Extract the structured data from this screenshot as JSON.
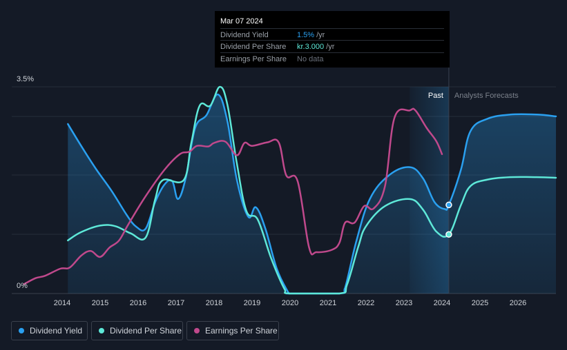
{
  "tooltip": {
    "date": "Mar 07 2024",
    "rows": [
      {
        "label": "Dividend Yield",
        "value": "1.5%",
        "unit": "/yr",
        "color": "#2aa0f0"
      },
      {
        "label": "Dividend Per Share",
        "value": "kr.3.000",
        "unit": "/yr",
        "color": "#5ee8d8"
      },
      {
        "label": "Earnings Per Share",
        "value": "No data",
        "unit": "",
        "color": "#6b717c"
      }
    ]
  },
  "regions": {
    "past_label": "Past",
    "forecast_label": "Analysts Forecasts"
  },
  "legend": [
    {
      "label": "Dividend Yield",
      "color": "#2aa0f0"
    },
    {
      "label": "Dividend Per Share",
      "color": "#5ee8d8"
    },
    {
      "label": "Earnings Per Share",
      "color": "#c0498c"
    }
  ],
  "chart_data": {
    "type": "line",
    "x_unit": "year",
    "xlim": [
      2013.0,
      2027.0
    ],
    "ylim": [
      0,
      3.5
    ],
    "y_tick_labels": [
      {
        "value": 3.5,
        "label": "3.5%"
      },
      {
        "value": 0,
        "label": "0%"
      }
    ],
    "x_ticks": [
      2014,
      2015,
      2016,
      2017,
      2018,
      2019,
      2020,
      2021,
      2022,
      2023,
      2024,
      2025,
      2026
    ],
    "past_region": [
      2023.15,
      2024.18
    ],
    "grid": "horizontal",
    "series": [
      {
        "name": "Dividend Yield",
        "color": "#2aa0f0",
        "fill": true,
        "points": [
          [
            2014.15,
            2.87
          ],
          [
            2014.5,
            2.5
          ],
          [
            2014.9,
            2.1
          ],
          [
            2015.3,
            1.74
          ],
          [
            2015.7,
            1.33
          ],
          [
            2015.95,
            1.13
          ],
          [
            2016.2,
            1.1
          ],
          [
            2016.45,
            1.55
          ],
          [
            2016.7,
            1.85
          ],
          [
            2016.9,
            1.9
          ],
          [
            2017.05,
            1.6
          ],
          [
            2017.25,
            1.95
          ],
          [
            2017.5,
            2.8
          ],
          [
            2017.8,
            3.02
          ],
          [
            2018.1,
            3.37
          ],
          [
            2018.35,
            2.92
          ],
          [
            2018.6,
            1.92
          ],
          [
            2018.9,
            1.3
          ],
          [
            2019.1,
            1.46
          ],
          [
            2019.35,
            1.1
          ],
          [
            2019.65,
            0.42
          ],
          [
            2019.95,
            0.02
          ],
          [
            2020.0,
            0.0
          ],
          [
            2021.3,
            0.0
          ],
          [
            2021.45,
            0.1
          ],
          [
            2021.75,
            0.9
          ],
          [
            2022.1,
            1.6
          ],
          [
            2022.6,
            2.0
          ],
          [
            2023.15,
            2.14
          ],
          [
            2023.5,
            1.95
          ],
          [
            2023.8,
            1.55
          ],
          [
            2024.07,
            1.43
          ],
          [
            2024.18,
            1.5
          ],
          [
            2024.5,
            2.1
          ],
          [
            2024.75,
            2.75
          ],
          [
            2025.2,
            2.96
          ],
          [
            2025.8,
            3.03
          ],
          [
            2026.5,
            3.03
          ],
          [
            2027.0,
            3.0
          ]
        ]
      },
      {
        "name": "Dividend Per Share",
        "color": "#5ee8d8",
        "fill": false,
        "points": [
          [
            2014.15,
            0.9
          ],
          [
            2014.5,
            1.04
          ],
          [
            2015.0,
            1.15
          ],
          [
            2015.4,
            1.14
          ],
          [
            2015.8,
            1.02
          ],
          [
            2016.2,
            0.95
          ],
          [
            2016.45,
            1.6
          ],
          [
            2016.65,
            1.92
          ],
          [
            2017.2,
            1.92
          ],
          [
            2017.4,
            2.55
          ],
          [
            2017.62,
            3.18
          ],
          [
            2017.9,
            3.18
          ],
          [
            2018.15,
            3.5
          ],
          [
            2018.35,
            3.2
          ],
          [
            2018.6,
            2.2
          ],
          [
            2018.85,
            1.4
          ],
          [
            2019.15,
            1.25
          ],
          [
            2019.5,
            0.6
          ],
          [
            2019.85,
            0.08
          ],
          [
            2020.0,
            0.0
          ],
          [
            2021.3,
            0.0
          ],
          [
            2021.5,
            0.15
          ],
          [
            2021.8,
            0.8
          ],
          [
            2022.0,
            1.14
          ],
          [
            2022.5,
            1.48
          ],
          [
            2023.15,
            1.6
          ],
          [
            2023.5,
            1.42
          ],
          [
            2023.85,
            1.05
          ],
          [
            2024.18,
            1.0
          ],
          [
            2024.5,
            1.5
          ],
          [
            2024.75,
            1.82
          ],
          [
            2025.2,
            1.93
          ],
          [
            2025.8,
            1.97
          ],
          [
            2026.5,
            1.97
          ],
          [
            2027.0,
            1.96
          ]
        ]
      },
      {
        "name": "Earnings Per Share",
        "color": "#c0498c",
        "fill": false,
        "points": [
          [
            2013.0,
            0.16
          ],
          [
            2013.3,
            0.26
          ],
          [
            2013.55,
            0.3
          ],
          [
            2013.95,
            0.42
          ],
          [
            2014.2,
            0.44
          ],
          [
            2014.5,
            0.64
          ],
          [
            2014.75,
            0.72
          ],
          [
            2015.0,
            0.62
          ],
          [
            2015.25,
            0.78
          ],
          [
            2015.5,
            0.9
          ],
          [
            2015.75,
            1.18
          ],
          [
            2016.2,
            1.65
          ],
          [
            2016.7,
            2.1
          ],
          [
            2017.1,
            2.36
          ],
          [
            2017.35,
            2.4
          ],
          [
            2017.55,
            2.5
          ],
          [
            2017.85,
            2.49
          ],
          [
            2018.0,
            2.55
          ],
          [
            2018.3,
            2.57
          ],
          [
            2018.6,
            2.34
          ],
          [
            2018.8,
            2.55
          ],
          [
            2019.0,
            2.5
          ],
          [
            2019.4,
            2.56
          ],
          [
            2019.7,
            2.56
          ],
          [
            2019.9,
            2.0
          ],
          [
            2020.2,
            1.9
          ],
          [
            2020.5,
            0.78
          ],
          [
            2020.7,
            0.7
          ],
          [
            2021.1,
            0.74
          ],
          [
            2021.3,
            0.86
          ],
          [
            2021.45,
            1.2
          ],
          [
            2021.7,
            1.2
          ],
          [
            2021.95,
            1.48
          ],
          [
            2022.2,
            1.44
          ],
          [
            2022.5,
            1.82
          ],
          [
            2022.75,
            2.98
          ],
          [
            2023.15,
            3.1
          ],
          [
            2023.3,
            3.1
          ],
          [
            2023.6,
            2.8
          ],
          [
            2023.85,
            2.58
          ],
          [
            2024.0,
            2.36
          ]
        ]
      }
    ],
    "markers": [
      {
        "series": "Dividend Yield",
        "x": 2024.18,
        "y": 1.5
      },
      {
        "series": "Dividend Per Share",
        "x": 2024.18,
        "y": 1.0
      }
    ]
  }
}
